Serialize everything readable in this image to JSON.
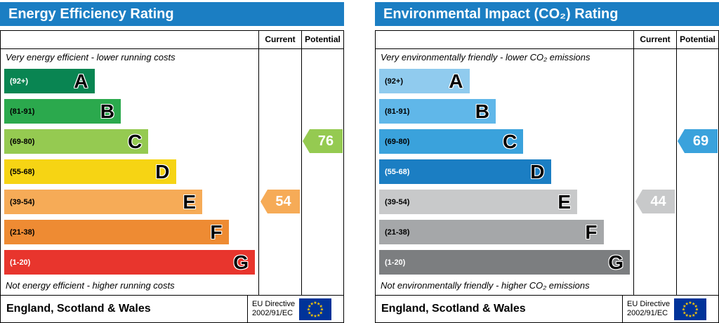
{
  "theme": {
    "header_color": "#1b7ec3",
    "eu_flag_blue": "#003399",
    "eu_star_yellow": "#ffcc00"
  },
  "chart_data": [
    {
      "type": "bar",
      "title": "Energy Efficiency Rating",
      "columns": [
        "Current",
        "Potential"
      ],
      "top_note": "Very energy efficient - lower running costs",
      "bottom_note": "Not energy efficient - higher running costs",
      "bands": [
        {
          "range": "(92+)",
          "letter": "A",
          "color": "#098552",
          "width_pct": 36,
          "range_color": "#ffffff"
        },
        {
          "range": "(81-91)",
          "letter": "B",
          "color": "#2ba94d",
          "width_pct": 46.5,
          "range_color": "#000000"
        },
        {
          "range": "(69-80)",
          "letter": "C",
          "color": "#95ca51",
          "width_pct": 57.5,
          "range_color": "#000000"
        },
        {
          "range": "(55-68)",
          "letter": "D",
          "color": "#f6d414",
          "width_pct": 68.5,
          "range_color": "#000000"
        },
        {
          "range": "(39-54)",
          "letter": "E",
          "color": "#f6ab57",
          "width_pct": 79,
          "range_color": "#000000"
        },
        {
          "range": "(21-38)",
          "letter": "F",
          "color": "#ee8b33",
          "width_pct": 89.5,
          "range_color": "#000000"
        },
        {
          "range": "(1-20)",
          "letter": "G",
          "color": "#e8352d",
          "width_pct": 100,
          "range_color": "#ffffff"
        }
      ],
      "current": {
        "value": 54,
        "band": "E",
        "row": 4,
        "color": "#f6ab57"
      },
      "potential": {
        "value": 76,
        "band": "C",
        "row": 2,
        "color": "#95ca51"
      },
      "footer_region": "England, Scotland & Wales",
      "directive_line1": "EU Directive",
      "directive_line2": "2002/91/EC"
    },
    {
      "type": "bar",
      "title": "Environmental Impact (CO₂) Rating",
      "columns": [
        "Current",
        "Potential"
      ],
      "top_note": "Very environmentally friendly - lower CO₂ emissions",
      "bottom_note": "Not environmentally friendly - higher CO₂ emissions",
      "bands": [
        {
          "range": "(92+)",
          "letter": "A",
          "color": "#90cbee",
          "width_pct": 36,
          "range_color": "#000000"
        },
        {
          "range": "(81-91)",
          "letter": "B",
          "color": "#60b7e9",
          "width_pct": 46.5,
          "range_color": "#000000"
        },
        {
          "range": "(69-80)",
          "letter": "C",
          "color": "#3aa2dc",
          "width_pct": 57.5,
          "range_color": "#000000"
        },
        {
          "range": "(55-68)",
          "letter": "D",
          "color": "#1b7ec3",
          "width_pct": 68.5,
          "range_color": "#ffffff"
        },
        {
          "range": "(39-54)",
          "letter": "E",
          "color": "#c8c9ca",
          "width_pct": 79,
          "range_color": "#000000"
        },
        {
          "range": "(21-38)",
          "letter": "F",
          "color": "#a5a7a9",
          "width_pct": 89.5,
          "range_color": "#000000"
        },
        {
          "range": "(1-20)",
          "letter": "G",
          "color": "#7c7e80",
          "width_pct": 100,
          "range_color": "#ffffff"
        }
      ],
      "current": {
        "value": 44,
        "band": "E",
        "row": 4,
        "color": "#c8c9ca"
      },
      "potential": {
        "value": 69,
        "band": "C",
        "row": 2,
        "color": "#3aa2dc"
      },
      "footer_region": "England, Scotland & Wales",
      "directive_line1": "EU Directive",
      "directive_line2": "2002/91/EC"
    }
  ]
}
